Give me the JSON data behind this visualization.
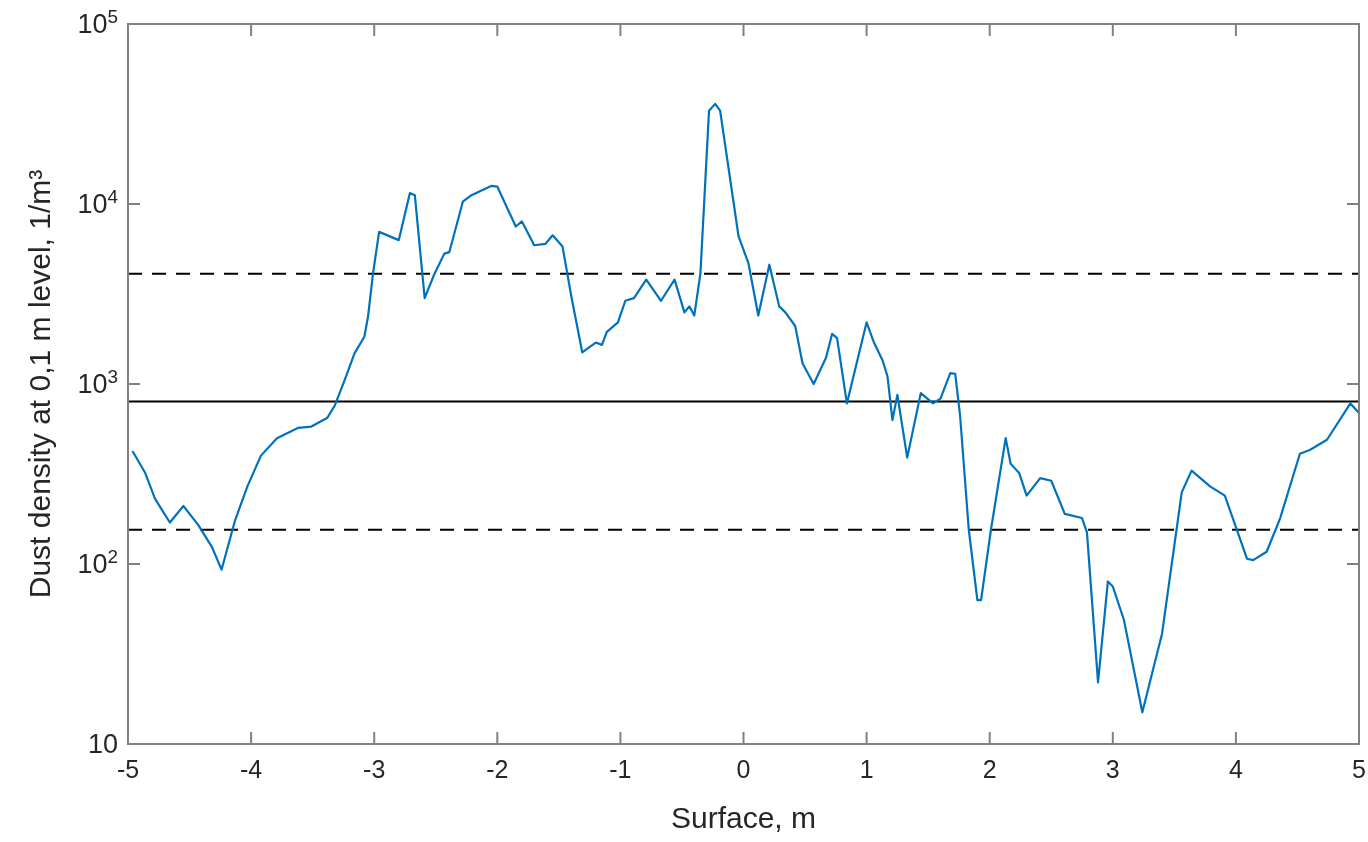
{
  "chart_data": {
    "type": "line",
    "xlabel": "Surface, m",
    "ylabel": "Dust density at 0,1 m level, 1/m³",
    "log": "y",
    "xlim": [
      -5,
      5
    ],
    "xticks": [
      -5,
      -4,
      -3,
      -2,
      -1,
      0,
      1,
      2,
      3,
      4,
      5
    ],
    "ylim": [
      10,
      100000
    ],
    "yticks": [
      10,
      {
        "value": 100,
        "label": "10$^{2}$"
      },
      {
        "value": 1000,
        "label": "10$^{3}$"
      },
      {
        "value": 10000,
        "label": "10$^{4}$"
      },
      {
        "value": 100000,
        "label": "10$^{5}$"
      }
    ],
    "grid": false,
    "marker": "none",
    "line_style": "solid",
    "ref_lines": [
      {
        "axis": "y",
        "value": 4100,
        "color": "#000000",
        "line_style": "dashed"
      },
      {
        "axis": "y",
        "value": 800,
        "color": "#000000",
        "line_style": "solid"
      },
      {
        "axis": "y",
        "value": 155,
        "color": "#000000",
        "line_style": "dashed"
      }
    ],
    "series": [
      {
        "color": "#0072bd",
        "x": [
          -4.96,
          -4.86,
          -4.78,
          -4.66,
          -4.55,
          -4.43,
          -4.32,
          -4.24,
          -4.13,
          -4.03,
          -3.92,
          -3.79,
          -3.62,
          -3.51,
          -3.38,
          -3.32,
          -3.24,
          -3.16,
          -3.08,
          -3.05,
          -3.01,
          -2.96,
          -2.8,
          -2.71,
          -2.67,
          -2.59,
          -2.51,
          -2.43,
          -2.39,
          -2.28,
          -2.21,
          -2.05,
          -2.0,
          -1.85,
          -1.8,
          -1.7,
          -1.61,
          -1.55,
          -1.47,
          -1.4,
          -1.31,
          -1.2,
          -1.15,
          -1.11,
          -1.02,
          -0.96,
          -0.89,
          -0.79,
          -0.67,
          -0.56,
          -0.48,
          -0.44,
          -0.4,
          -0.35,
          -0.28,
          -0.23,
          -0.19,
          -0.04,
          0.04,
          0.12,
          0.21,
          0.29,
          0.34,
          0.42,
          0.48,
          0.57,
          0.67,
          0.72,
          0.76,
          0.84,
          1.0,
          1.06,
          1.13,
          1.17,
          1.21,
          1.25,
          1.33,
          1.44,
          1.54,
          1.6,
          1.68,
          1.72,
          1.76,
          1.83,
          1.9,
          1.93,
          2.01,
          2.13,
          2.17,
          2.24,
          2.3,
          2.41,
          2.5,
          2.61,
          2.75,
          2.79,
          2.88,
          2.96,
          3.0,
          3.09,
          3.24,
          3.4,
          3.56,
          3.64,
          3.79,
          3.91,
          4.09,
          4.14,
          4.25,
          4.36,
          4.52,
          4.6,
          4.74,
          4.93,
          5.0
        ],
        "values": [
          420,
          320,
          230,
          170,
          210,
          165,
          125,
          93,
          175,
          270,
          400,
          500,
          570,
          580,
          650,
          760,
          1050,
          1480,
          1830,
          2370,
          4100,
          7000,
          6300,
          11500,
          11200,
          3000,
          4100,
          5300,
          5400,
          10300,
          11200,
          12600,
          12500,
          7500,
          8000,
          5900,
          6000,
          6700,
          5800,
          3100,
          1500,
          1700,
          1650,
          1950,
          2200,
          2900,
          3000,
          3800,
          2900,
          3800,
          2500,
          2700,
          2400,
          4100,
          33000,
          36000,
          33000,
          6600,
          4700,
          2400,
          4600,
          2700,
          2500,
          2100,
          1300,
          1000,
          1400,
          1900,
          1800,
          780,
          2200,
          1700,
          1350,
          1100,
          630,
          870,
          390,
          890,
          780,
          830,
          1150,
          1140,
          660,
          155,
          63,
          63,
          155,
          500,
          360,
          320,
          240,
          300,
          290,
          190,
          180,
          150,
          22,
          80,
          75,
          49,
          15,
          41,
          250,
          330,
          270,
          240,
          107,
          105,
          117,
          180,
          410,
          430,
          490,
          780,
          690
        ]
      }
    ]
  }
}
